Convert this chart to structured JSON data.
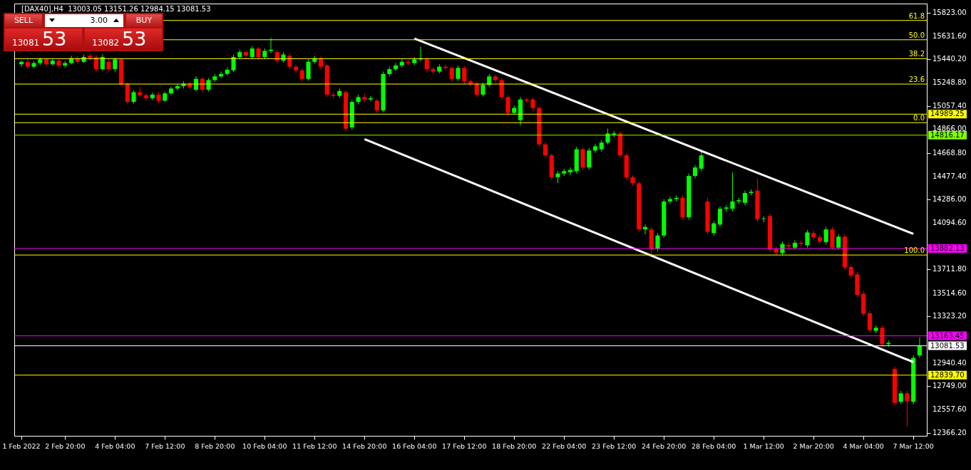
{
  "chart_data": {
    "type": "candlestick",
    "title": "[DAX40],H4  13003.05 13151.26 12984.15 13081.53",
    "annotations": [
      "SELL",
      "3.00",
      "BUY",
      "13081",
      "53",
      "13082",
      "53",
      {
        "text": "61.8",
        "y": 15761
      },
      {
        "text": "50.0",
        "y": 15602
      },
      {
        "text": "38.2",
        "y": 15446
      },
      {
        "text": "23.6",
        "y": 15237
      },
      {
        "text": "0.0",
        "y": 14919
      },
      {
        "text": "100.0",
        "y": 13829
      }
    ],
    "categories": [
      "1 Feb 2022",
      null,
      null,
      null,
      null,
      null,
      null,
      "2 Feb 20:00",
      null,
      null,
      null,
      null,
      null,
      null,
      null,
      "4 Feb 04:00",
      null,
      null,
      null,
      null,
      null,
      null,
      null,
      "7 Feb 12:00",
      null,
      null,
      null,
      null,
      null,
      null,
      null,
      "8 Feb 20:00",
      null,
      null,
      null,
      null,
      null,
      null,
      null,
      "10 Feb 04:00",
      null,
      null,
      null,
      null,
      null,
      null,
      null,
      "11 Feb 12:00",
      null,
      null,
      null,
      null,
      null,
      null,
      null,
      "14 Feb 20:00",
      null,
      null,
      null,
      null,
      null,
      null,
      null,
      "16 Feb 04:00",
      null,
      null,
      null,
      null,
      null,
      null,
      null,
      "17 Feb 12:00",
      null,
      null,
      null,
      null,
      null,
      null,
      null,
      "18 Feb 20:00",
      null,
      null,
      null,
      null,
      null,
      null,
      null,
      "22 Feb 04:00",
      null,
      null,
      null,
      null,
      null,
      null,
      null,
      "23 Feb 12:00",
      null,
      null,
      null,
      null,
      null,
      null,
      null,
      "24 Feb 20:00",
      null,
      null,
      null,
      null,
      null,
      null,
      null,
      "28 Feb 04:00",
      null,
      null,
      null,
      null,
      null,
      null,
      null,
      "1 Mar 12:00",
      null,
      null,
      null,
      null,
      null,
      null,
      null,
      "2 Mar 20:00",
      null,
      null,
      null,
      null,
      null,
      null,
      null,
      "4 Mar 04:00",
      null,
      null,
      null,
      null,
      null,
      null,
      null,
      "7 Mar 12:00",
      null
    ],
    "ohlc": [
      [
        15400,
        15430,
        15380,
        15420
      ],
      [
        15420,
        15440,
        15365,
        15380
      ],
      [
        15380,
        15425,
        15370,
        15410
      ],
      [
        15410,
        15455,
        15395,
        15440
      ],
      [
        15440,
        15450,
        15385,
        15400
      ],
      [
        15400,
        15445,
        15390,
        15430
      ],
      [
        15430,
        15440,
        15370,
        15390
      ],
      [
        15390,
        15425,
        15375,
        15410
      ],
      [
        15410,
        15470,
        15400,
        15450
      ],
      [
        15450,
        15465,
        15405,
        15420
      ],
      [
        15420,
        15480,
        15410,
        15460
      ],
      [
        15470,
        15490,
        15430,
        15450
      ],
      [
        15460,
        15475,
        15340,
        15360
      ],
      [
        15360,
        15480,
        15350,
        15460
      ],
      [
        15420,
        15440,
        15345,
        15360
      ],
      [
        15360,
        15455,
        15340,
        15440
      ],
      [
        15440,
        15450,
        15220,
        15235
      ],
      [
        15240,
        15250,
        15070,
        15090
      ],
      [
        15090,
        15185,
        15075,
        15170
      ],
      [
        15170,
        15210,
        15130,
        15145
      ],
      [
        15145,
        15160,
        15100,
        15120
      ],
      [
        15120,
        15165,
        15105,
        15150
      ],
      [
        15150,
        15170,
        15080,
        15100
      ],
      [
        15100,
        15175,
        15090,
        15160
      ],
      [
        15160,
        15215,
        15145,
        15200
      ],
      [
        15200,
        15235,
        15185,
        15220
      ],
      [
        15220,
        15260,
        15200,
        15240
      ],
      [
        15240,
        15255,
        15195,
        15210
      ],
      [
        15190,
        15300,
        15175,
        15280
      ],
      [
        15280,
        15295,
        15170,
        15190
      ],
      [
        15190,
        15285,
        15175,
        15270
      ],
      [
        15270,
        15320,
        15255,
        15300
      ],
      [
        15300,
        15340,
        15285,
        15320
      ],
      [
        15320,
        15375,
        15305,
        15355
      ],
      [
        15350,
        15480,
        15335,
        15460
      ],
      [
        15460,
        15520,
        15445,
        15500
      ],
      [
        15500,
        15515,
        15450,
        15470
      ],
      [
        15460,
        15550,
        15445,
        15530
      ],
      [
        15530,
        15545,
        15440,
        15460
      ],
      [
        15460,
        15530,
        15445,
        15510
      ],
      [
        15510,
        15616,
        15490,
        15520
      ],
      [
        15500,
        15515,
        15410,
        15430
      ],
      [
        15430,
        15500,
        15415,
        15480
      ],
      [
        15470,
        15490,
        15360,
        15380
      ],
      [
        15380,
        15395,
        15330,
        15350
      ],
      [
        15350,
        15365,
        15260,
        15280
      ],
      [
        15280,
        15440,
        15265,
        15420
      ],
      [
        15420,
        15470,
        15405,
        15450
      ],
      [
        15450,
        15465,
        15360,
        15380
      ],
      [
        15390,
        15400,
        15130,
        15150
      ],
      [
        15150,
        15170,
        15120,
        15140
      ],
      [
        15140,
        15200,
        15125,
        15180
      ],
      [
        15170,
        15185,
        14850,
        14870
      ],
      [
        14880,
        15105,
        14860,
        15090
      ],
      [
        15090,
        15150,
        15070,
        15130
      ],
      [
        15130,
        15160,
        15090,
        15110
      ],
      [
        15110,
        15140,
        15095,
        15120
      ],
      [
        15100,
        15115,
        15000,
        15020
      ],
      [
        15020,
        15340,
        15005,
        15320
      ],
      [
        15320,
        15380,
        15300,
        15360
      ],
      [
        15360,
        15410,
        15345,
        15390
      ],
      [
        15390,
        15440,
        15375,
        15420
      ],
      [
        15420,
        15435,
        15395,
        15410
      ],
      [
        15410,
        15460,
        15395,
        15440
      ],
      [
        15440,
        15547,
        15425,
        15450
      ],
      [
        15440,
        15455,
        15340,
        15360
      ],
      [
        15360,
        15375,
        15320,
        15340
      ],
      [
        15340,
        15400,
        15325,
        15380
      ],
      [
        15380,
        15395,
        15350,
        15370
      ],
      [
        15370,
        15385,
        15260,
        15280
      ],
      [
        15280,
        15390,
        15265,
        15370
      ],
      [
        15370,
        15385,
        15240,
        15260
      ],
      [
        15260,
        15275,
        15220,
        15240
      ],
      [
        15240,
        15255,
        15130,
        15150
      ],
      [
        15150,
        15250,
        15135,
        15230
      ],
      [
        15230,
        15320,
        15215,
        15300
      ],
      [
        15300,
        15315,
        15250,
        15270
      ],
      [
        15270,
        15285,
        15110,
        15130
      ],
      [
        15130,
        15145,
        14980,
        15000
      ],
      [
        15000,
        15060,
        14985,
        15040
      ],
      [
        14940,
        15130,
        14900,
        15110
      ],
      [
        15110,
        15125,
        15085,
        15100
      ],
      [
        15110,
        15125,
        15020,
        15040
      ],
      [
        15040,
        15055,
        14720,
        14740
      ],
      [
        14740,
        14760,
        14630,
        14650
      ],
      [
        14650,
        14665,
        14450,
        14470
      ],
      [
        14470,
        14520,
        14420,
        14500
      ],
      [
        14500,
        14540,
        14480,
        14520
      ],
      [
        14510,
        14550,
        14490,
        14530
      ],
      [
        14520,
        14720,
        14500,
        14700
      ],
      [
        14700,
        14715,
        14530,
        14550
      ],
      [
        14550,
        14710,
        14530,
        14690
      ],
      [
        14690,
        14745,
        14670,
        14725
      ],
      [
        14700,
        14775,
        14680,
        14755
      ],
      [
        14755,
        14870,
        14740,
        14830
      ],
      [
        14820,
        14850,
        14800,
        14830
      ],
      [
        14830,
        14845,
        14630,
        14650
      ],
      [
        14650,
        14665,
        14450,
        14470
      ],
      [
        14470,
        14485,
        14400,
        14420
      ],
      [
        14420,
        14435,
        14020,
        14040
      ],
      [
        14040,
        14080,
        14000,
        14060
      ],
      [
        14040,
        14060,
        13820,
        13880
      ],
      [
        13880,
        14010,
        13860,
        13990
      ],
      [
        13990,
        14290,
        13970,
        14270
      ],
      [
        14270,
        14310,
        14250,
        14290
      ],
      [
        14290,
        14320,
        14270,
        14300
      ],
      [
        14300,
        14320,
        14120,
        14140
      ],
      [
        14140,
        14500,
        14120,
        14480
      ],
      [
        14480,
        14570,
        14460,
        14550
      ],
      [
        14540,
        14690,
        14520,
        14650
      ],
      [
        14270,
        14300,
        14000,
        14020
      ],
      [
        14010,
        14110,
        13990,
        14090
      ],
      [
        14080,
        14230,
        14060,
        14210
      ],
      [
        14210,
        14240,
        14190,
        14220
      ],
      [
        14210,
        14510,
        14190,
        14270
      ],
      [
        14270,
        14300,
        14250,
        14280
      ],
      [
        14260,
        14360,
        14240,
        14340
      ],
      [
        14340,
        14370,
        14320,
        14350
      ],
      [
        14360,
        14460,
        14105,
        14125
      ],
      [
        14125,
        14150,
        14100,
        14130
      ],
      [
        14150,
        14170,
        13855,
        13875
      ],
      [
        13880,
        13900,
        13830,
        13850
      ],
      [
        13845,
        13940,
        13825,
        13920
      ],
      [
        13910,
        13930,
        13880,
        13900
      ],
      [
        13890,
        13950,
        13870,
        13930
      ],
      [
        13930,
        13950,
        13900,
        13920
      ],
      [
        13910,
        14035,
        13890,
        14015
      ],
      [
        14010,
        14030,
        13955,
        13975
      ],
      [
        13975,
        13995,
        13920,
        13940
      ],
      [
        13935,
        14060,
        13915,
        14040
      ],
      [
        14040,
        14060,
        13870,
        13890
      ],
      [
        13890,
        14000,
        13870,
        13980
      ],
      [
        13980,
        14000,
        13707,
        13727
      ],
      [
        13730,
        13750,
        13640,
        13660
      ],
      [
        13670,
        13690,
        13480,
        13500
      ],
      [
        13510,
        13530,
        13325,
        13345
      ],
      [
        13350,
        13370,
        13190,
        13210
      ],
      [
        13205,
        13250,
        13185,
        13230
      ],
      [
        13230,
        13250,
        13075,
        13095
      ],
      [
        13095,
        13125,
        13075,
        13105
      ],
      [
        12890,
        12910,
        12592,
        12612
      ],
      [
        12620,
        12710,
        12600,
        12690
      ],
      [
        12690,
        12710,
        12418,
        12625
      ],
      [
        12620,
        13002,
        12600,
        12982
      ],
      [
        13003.05,
        13151.26,
        12984.15,
        13081.53
      ]
    ],
    "colors": [
      "#00ff00",
      "#ff0000",
      "#00ff00",
      "#00ff00",
      "#ff0000",
      "#00ff00",
      "#ff0000",
      "#00ff00",
      "#00ff00",
      "#ff0000",
      "#00ff00",
      "#ff0000",
      "#ff0000",
      "#00ff00",
      "#ff0000",
      "#00ff00",
      "#ff0000",
      "#ff0000",
      "#00ff00",
      "#ff0000",
      "#ff0000",
      "#00ff00",
      "#ff0000",
      "#00ff00",
      "#00ff00",
      "#00ff00",
      "#00ff00",
      "#ff0000",
      "#00ff00",
      "#ff0000",
      "#00ff00",
      "#00ff00",
      "#00ff00",
      "#00ff00",
      "#00ff00",
      "#00ff00",
      "#ff0000",
      "#00ff00",
      "#ff0000",
      "#00ff00",
      "#00ff00",
      "#ff0000",
      "#00ff00",
      "#ff0000",
      "#ff0000",
      "#ff0000",
      "#00ff00",
      "#00ff00",
      "#ff0000",
      "#ff0000",
      "#ff0000",
      "#00ff00",
      "#ff0000",
      "#00ff00",
      "#00ff00",
      "#ff0000",
      "#00ff00",
      "#ff0000",
      "#00ff00",
      "#00ff00",
      "#00ff00",
      "#00ff00",
      "#ff0000",
      "#00ff00",
      "#00ff00",
      "#ff0000",
      "#ff0000",
      "#00ff00",
      "#ff0000",
      "#ff0000",
      "#00ff00",
      "#ff0000",
      "#ff0000",
      "#ff0000",
      "#00ff00",
      "#00ff00",
      "#ff0000",
      "#ff0000",
      "#ff0000",
      "#00ff00",
      "#00ff00",
      "#ff0000",
      "#ff0000",
      "#ff0000",
      "#ff0000",
      "#ff0000",
      "#00ff00",
      "#00ff00",
      "#00ff00",
      "#00ff00",
      "#ff0000",
      "#00ff00",
      "#00ff00",
      "#00ff00",
      "#00ff00",
      "#00ff00",
      "#ff0000",
      "#ff0000",
      "#ff0000",
      "#ff0000",
      "#00ff00",
      "#ff0000",
      "#00ff00",
      "#00ff00",
      "#00ff00",
      "#00ff00",
      "#ff0000",
      "#00ff00",
      "#00ff00",
      "#00ff00",
      "#ff0000",
      "#00ff00",
      "#00ff00",
      "#00ff00",
      "#00ff00",
      "#00ff00",
      "#00ff00",
      "#00ff00",
      "#ff0000",
      "#00ff00",
      "#ff0000",
      "#ff0000",
      "#00ff00",
      "#ff0000",
      "#00ff00",
      "#ff0000",
      "#00ff00",
      "#ff0000",
      "#ff0000",
      "#00ff00",
      "#ff0000",
      "#00ff00",
      "#ff0000",
      "#ff0000",
      "#ff0000",
      "#ff0000",
      "#ff0000",
      "#00ff00",
      "#ff0000",
      "#00ff00",
      "#ff0000",
      "#00ff00",
      "#ff0000",
      "#00ff00",
      "#00ff00"
    ],
    "series": [
      {
        "type": "line",
        "color": "#ffffff",
        "x": [
          "16 Feb 04:00",
          "7 Mar 12:00"
        ],
        "values": [
          15612,
          14003
        ]
      },
      {
        "type": "line",
        "color": "#ffffff",
        "x": [
          "14 Feb 20:00",
          "7 Mar 12:00"
        ],
        "values": [
          14784,
          12947
        ]
      }
    ],
    "ref_lines": [
      {
        "axis": "y",
        "value": 15761,
        "color": "#ffff00"
      },
      {
        "axis": "y",
        "value": 15602,
        "color": "#ffff00"
      },
      {
        "axis": "y",
        "value": 15446,
        "color": "#ffff00"
      },
      {
        "axis": "y",
        "value": 15237,
        "color": "#ffff00"
      },
      {
        "axis": "y",
        "value": 14989.25,
        "label": "14989.25",
        "color": "#ffff00"
      },
      {
        "axis": "y",
        "value": 14919,
        "color": "#ffff00"
      },
      {
        "axis": "y",
        "value": 14816.17,
        "label": "14816.17",
        "color": "#7fff00"
      },
      {
        "axis": "y",
        "value": 13882.13,
        "label": "13882.13",
        "color": "#ff00ff"
      },
      {
        "axis": "y",
        "value": 13829,
        "color": "#ffff00"
      },
      {
        "axis": "y",
        "value": 13163.45,
        "label": "13163.45",
        "color": "#ff00ff"
      },
      {
        "axis": "y",
        "value": 13081.53,
        "label": "13081.53",
        "color": "#ffffff"
      },
      {
        "axis": "y",
        "value": 12839.7,
        "label": "12839.70",
        "color": "#ffff00"
      }
    ],
    "ylim": [
      12340,
      15900
    ],
    "yticks": [
      {
        "value": 15823,
        "label": "15823.00"
      },
      {
        "value": 15631.6,
        "label": "15631.60"
      },
      {
        "value": 15440.2,
        "label": "15440.20"
      },
      {
        "value": 15248.8,
        "label": "15248.80"
      },
      {
        "value": 15057.4,
        "label": "15057.40"
      },
      {
        "value": 14866,
        "label": "14866.00"
      },
      {
        "value": 14668.8,
        "label": "14668.80"
      },
      {
        "value": 14477.4,
        "label": "14477.40"
      },
      {
        "value": 14286,
        "label": "14286.00"
      },
      {
        "value": 14094.6,
        "label": "14094.60"
      },
      {
        "value": 13711.8,
        "label": "13711.80"
      },
      {
        "value": 13514.6,
        "label": "13514.60"
      },
      {
        "value": 13323.2,
        "label": "13323.20"
      },
      {
        "value": 12940.4,
        "label": "12940.40"
      },
      {
        "value": 12749,
        "label": "12749.00"
      },
      {
        "value": 12557.6,
        "label": "12557.60"
      },
      {
        "value": 12366.2,
        "label": "12366.20"
      }
    ]
  }
}
